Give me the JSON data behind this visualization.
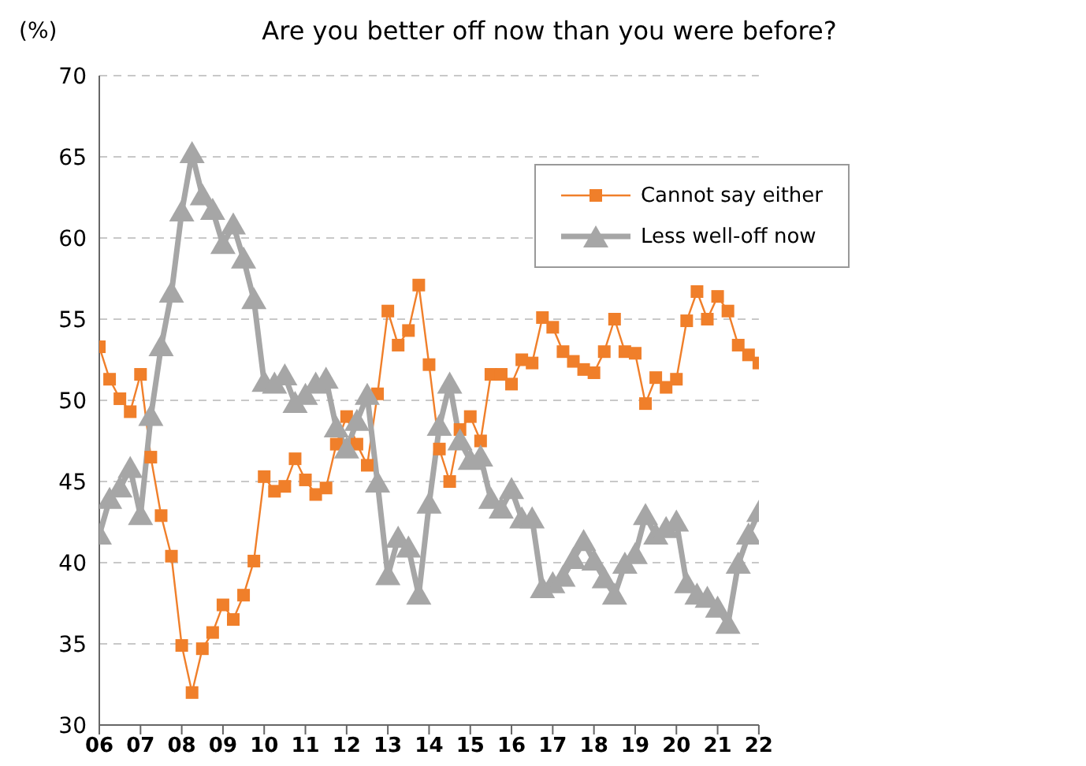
{
  "chart_data": {
    "type": "line",
    "title": "Are you better off now than you were before?",
    "ylabel": "(%)",
    "x": [
      2006,
      2006.25,
      2006.5,
      2006.75,
      2007,
      2007.25,
      2007.5,
      2007.75,
      2008,
      2008.25,
      2008.5,
      2008.75,
      2009,
      2009.25,
      2009.5,
      2009.75,
      2010,
      2010.25,
      2010.5,
      2010.75,
      2011,
      2011.25,
      2011.5,
      2011.75,
      2012,
      2012.25,
      2012.5,
      2012.75,
      2013,
      2013.25,
      2013.5,
      2013.75,
      2014,
      2014.25,
      2014.5,
      2014.75,
      2015,
      2015.25,
      2015.5,
      2015.75,
      2016,
      2016.25,
      2016.5,
      2016.75,
      2017,
      2017.25,
      2017.5,
      2017.75,
      2018,
      2018.25,
      2018.5,
      2018.75,
      2019,
      2019.25,
      2019.5,
      2019.75,
      2020,
      2020.25,
      2020.5,
      2020.75,
      2021,
      2021.25,
      2021.5,
      2021.75,
      2022
    ],
    "series": [
      {
        "name": "Cannot say either",
        "color": "#f07f2a",
        "marker": "square",
        "values": [
          53.3,
          51.3,
          50.1,
          49.3,
          51.6,
          46.5,
          42.9,
          40.4,
          34.9,
          32.0,
          34.7,
          35.7,
          37.4,
          36.5,
          38.0,
          40.1,
          45.3,
          44.4,
          44.7,
          46.4,
          45.1,
          44.2,
          44.6,
          47.3,
          49.0,
          47.3,
          46.0,
          50.4,
          55.5,
          53.4,
          54.3,
          57.1,
          52.2,
          47.0,
          45.0,
          48.2,
          49.0,
          47.5,
          51.6,
          51.6,
          51.0,
          52.5,
          52.3,
          55.1,
          54.5,
          53.0,
          52.4,
          51.9,
          51.7,
          53.0,
          55.0,
          53.0,
          52.9,
          49.8,
          51.4,
          50.8,
          51.3,
          54.9,
          56.7,
          55.0,
          56.4,
          55.5,
          53.4,
          52.8,
          52.3
        ]
      },
      {
        "name": "Less well-off now",
        "color": "#a6a6a6",
        "marker": "triangle",
        "values": [
          41.7,
          43.9,
          44.6,
          45.8,
          42.9,
          49.0,
          53.3,
          56.6,
          61.6,
          65.2,
          62.6,
          61.7,
          59.6,
          60.8,
          58.7,
          56.2,
          51.1,
          51.0,
          51.5,
          49.8,
          50.3,
          51.0,
          51.3,
          48.3,
          47.0,
          48.7,
          50.3,
          44.9,
          39.2,
          41.5,
          40.9,
          38.0,
          43.6,
          48.4,
          51.0,
          47.5,
          46.3,
          46.5,
          43.9,
          43.3,
          44.5,
          42.7,
          42.7,
          38.4,
          38.7,
          39.1,
          40.2,
          41.3,
          40.1,
          39.0,
          38.0,
          39.9,
          40.5,
          42.9,
          41.7,
          42.1,
          42.5,
          38.7,
          38.0,
          37.8,
          37.2,
          36.2,
          39.9,
          41.7,
          43.1
        ]
      }
    ],
    "xlim": [
      2006,
      2022
    ],
    "xticks": [
      {
        "value": 2006,
        "label": "06"
      },
      {
        "value": 2007,
        "label": "07"
      },
      {
        "value": 2008,
        "label": "08"
      },
      {
        "value": 2009,
        "label": "09"
      },
      {
        "value": 2010,
        "label": "10"
      },
      {
        "value": 2011,
        "label": "11"
      },
      {
        "value": 2012,
        "label": "12"
      },
      {
        "value": 2013,
        "label": "13"
      },
      {
        "value": 2014,
        "label": "14"
      },
      {
        "value": 2015,
        "label": "15"
      },
      {
        "value": 2016,
        "label": "16"
      },
      {
        "value": 2017,
        "label": "17"
      },
      {
        "value": 2018,
        "label": "18"
      },
      {
        "value": 2019,
        "label": "19"
      },
      {
        "value": 2020,
        "label": "20"
      },
      {
        "value": 2021,
        "label": "21"
      },
      {
        "value": 2022,
        "label": "22"
      }
    ],
    "ylim": [
      30,
      70
    ],
    "yticks": [
      30,
      35,
      40,
      45,
      50,
      55,
      60,
      65,
      70
    ],
    "grid": "y",
    "legend": "top right"
  }
}
